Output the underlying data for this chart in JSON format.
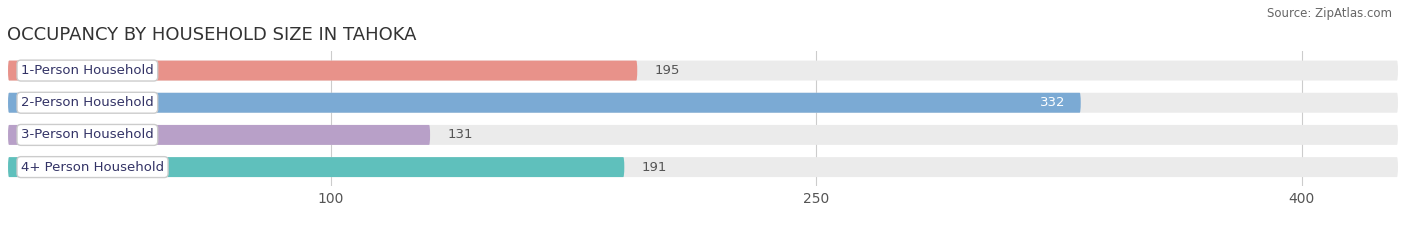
{
  "title": "OCCUPANCY BY HOUSEHOLD SIZE IN TAHOKA",
  "source": "Source: ZipAtlas.com",
  "categories": [
    "1-Person Household",
    "2-Person Household",
    "3-Person Household",
    "4+ Person Household"
  ],
  "values": [
    195,
    332,
    131,
    191
  ],
  "bar_colors": [
    "#e8928a",
    "#7baad4",
    "#b8a0c8",
    "#5fc0bc"
  ],
  "label_colors": [
    "#333333",
    "#ffffff",
    "#333333",
    "#333333"
  ],
  "value_inside": [
    false,
    true,
    false,
    false
  ],
  "xlim": [
    0,
    430
  ],
  "xticks": [
    100,
    250,
    400
  ],
  "background_color": "#ffffff",
  "bar_bg_color": "#ebebeb",
  "title_fontsize": 13,
  "tick_fontsize": 10,
  "label_fontsize": 9.5,
  "value_fontsize": 9.5
}
